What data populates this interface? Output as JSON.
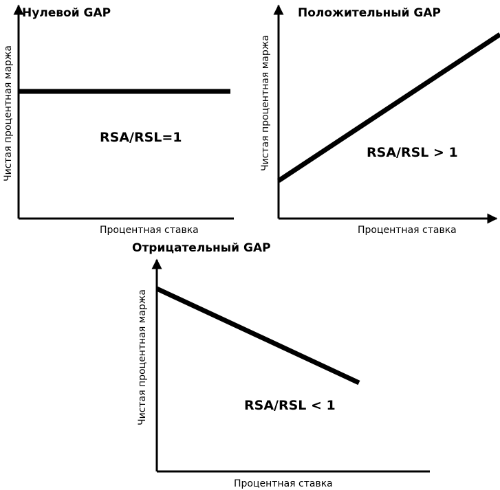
{
  "panels": [
    {
      "title": "Нулевой GAP",
      "y_label": "Чистая процентная маржа",
      "x_label": "Процентная ставка",
      "annotation": "RSA/RSL=1"
    },
    {
      "title": "Положительный GAP",
      "y_label": "Чистая процентная маржа",
      "x_label": "Процентная ставка",
      "annotation": "RSA/RSL > 1"
    },
    {
      "title": "Отрицательный GAP",
      "y_label": "Чистая процентная маржа",
      "x_label": "Процентная ставка",
      "annotation": "RSA/RSL < 1"
    }
  ]
}
